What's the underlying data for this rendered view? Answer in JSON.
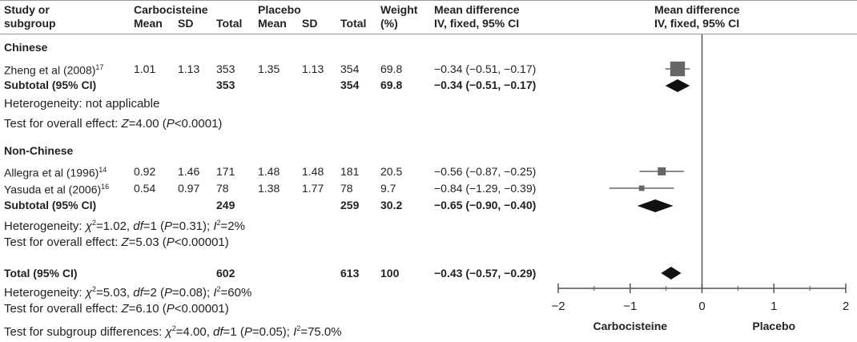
{
  "header": {
    "study_label": "Study or",
    "subgroup_label": "subgroup",
    "carbo_group": "Carbocisteine",
    "placebo_group": "Placebo",
    "mean": "Mean",
    "sd": "SD",
    "total": "Total",
    "weight": "Weight",
    "weight_unit": "(%)",
    "md_line1": "Mean difference",
    "md_line2": "IV, fixed, 95% CI",
    "plot_line1": "Mean difference",
    "plot_line2": "IV, fixed, 95% CI"
  },
  "groups": [
    {
      "name": "Chinese",
      "studies": [
        {
          "name": "Zheng et al (2008)",
          "ref": "17",
          "c_mean": "1.01",
          "c_sd": "1.13",
          "c_total": "353",
          "p_mean": "1.35",
          "p_sd": "1.13",
          "p_total": "354",
          "weight": "69.8",
          "ci": "−0.34 (−0.51, −0.17)"
        }
      ],
      "subtotal": {
        "label": "Subtotal (95% CI)",
        "c_total": "353",
        "p_total": "354",
        "weight": "69.8",
        "ci": "−0.34 (−0.51, −0.17)"
      },
      "heterogeneity": "Heterogeneity: not applicable",
      "overall": {
        "prefix": "Test for overall effect: ",
        "stat": "Z",
        "value": "=4.00 (",
        "p": "P",
        "rest": "<0.0001)"
      }
    },
    {
      "name": "Non-Chinese",
      "studies": [
        {
          "name": "Allegra et al (1996)",
          "ref": "14",
          "c_mean": "0.92",
          "c_sd": "1.46",
          "c_total": "171",
          "p_mean": "1.48",
          "p_sd": "1.48",
          "p_total": "181",
          "weight": "20.5",
          "ci": "−0.56 (−0.87, −0.25)"
        },
        {
          "name": "Yasuda et al (2006)",
          "ref": "16",
          "c_mean": "0.54",
          "c_sd": "0.97",
          "c_total": "78",
          "p_mean": "1.38",
          "p_sd": "1.77",
          "p_total": "78",
          "weight": "9.7",
          "ci": "−0.84 (−1.29, −0.39)"
        }
      ],
      "subtotal": {
        "label": "Subtotal (95% CI)",
        "c_total": "249",
        "p_total": "259",
        "weight": "30.2",
        "ci": "−0.65 (−0.90, −0.40)"
      },
      "heterogeneity_parts": {
        "prefix": "Heterogeneity: ",
        "chi": "χ",
        "sup": "2",
        "a": "=1.02, ",
        "df": "df",
        "b": "=1 (",
        "p": "P",
        "c": "=0.31); ",
        "i": "I",
        "isup": "2",
        "d": "=2%"
      },
      "overall": {
        "prefix": "Test for overall effect: ",
        "stat": "Z",
        "value": "=5.03 (",
        "p": "P",
        "rest": "<0.00001)"
      }
    }
  ],
  "total": {
    "label": "Total (95% CI)",
    "c_total": "602",
    "p_total": "613",
    "weight": "100",
    "ci": "−0.43 (−0.57, −0.29)",
    "heterogeneity_parts": {
      "prefix": "Heterogeneity: ",
      "chi": "χ",
      "sup": "2",
      "a": "=5.03, ",
      "df": "df",
      "b": "=2 (",
      "p": "P",
      "c": "=0.08); ",
      "i": "I",
      "isup": "2",
      "d": "=60%"
    },
    "overall": {
      "prefix": "Test for overall effect: ",
      "stat": "Z",
      "value": "=6.10 (",
      "p": "P",
      "rest": "<0.00001)"
    },
    "subgroup_parts": {
      "prefix": "Test for subgroup differences: ",
      "chi": "χ",
      "sup": "2",
      "a": "=4.00, ",
      "df": "df",
      "b": "=1 (",
      "p": "P",
      "c": "=0.05); ",
      "i": "I",
      "isup": "2",
      "d": "=75.0%"
    }
  },
  "chart_data": {
    "type": "forest",
    "xlim": [
      -2,
      2
    ],
    "ticks": [
      -2,
      -1,
      0,
      1,
      2
    ],
    "tick_labels": [
      "−2",
      "−1",
      "0",
      "1",
      "2"
    ],
    "left_label": "Carbocisteine",
    "right_label": "Placebo",
    "studies": [
      {
        "name": "Zheng et al (2008)",
        "md": -0.34,
        "lo": -0.51,
        "hi": -0.17,
        "weight": 69.8
      },
      {
        "name": "Allegra et al (1996)",
        "md": -0.56,
        "lo": -0.87,
        "hi": -0.25,
        "weight": 20.5
      },
      {
        "name": "Yasuda et al (2006)",
        "md": -0.84,
        "lo": -1.29,
        "hi": -0.39,
        "weight": 9.7
      }
    ],
    "diamonds": [
      {
        "name": "Subtotal Chinese",
        "md": -0.34,
        "lo": -0.51,
        "hi": -0.17
      },
      {
        "name": "Subtotal Non-Chinese",
        "md": -0.65,
        "lo": -0.9,
        "hi": -0.4
      },
      {
        "name": "Total",
        "md": -0.43,
        "lo": -0.57,
        "hi": -0.29
      }
    ],
    "colors": {
      "marker": "#666666",
      "diamond": "#111111",
      "axis": "#555555"
    }
  }
}
